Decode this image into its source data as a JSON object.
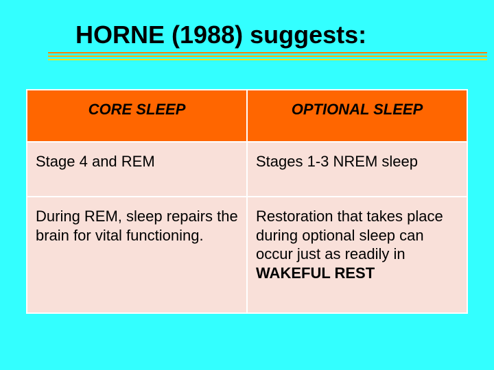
{
  "slide": {
    "background_color": "#33ffff",
    "title": "HORNE (1988) suggests:",
    "title_color": "#000000",
    "underline_colors": [
      "#ff8000",
      "#ffb000",
      "#ffe000"
    ]
  },
  "table": {
    "header_bg": "#ff6600",
    "row_bg": "#f9e0d9",
    "border_color": "#ffffff",
    "columns": [
      {
        "header": "CORE SLEEP"
      },
      {
        "header": "OPTIONAL SLEEP"
      }
    ],
    "rows": [
      {
        "cells": [
          "Stage 4 and REM",
          "Stages 1-3 NREM sleep"
        ]
      },
      {
        "cells": [
          "During REM, sleep repairs the brain for vital functioning.",
          ""
        ]
      }
    ],
    "cell_r2_c1_prefix": "Restoration that takes place during optional sleep can occur just as readily in ",
    "cell_r2_c1_bold": "WAKEFUL REST"
  }
}
